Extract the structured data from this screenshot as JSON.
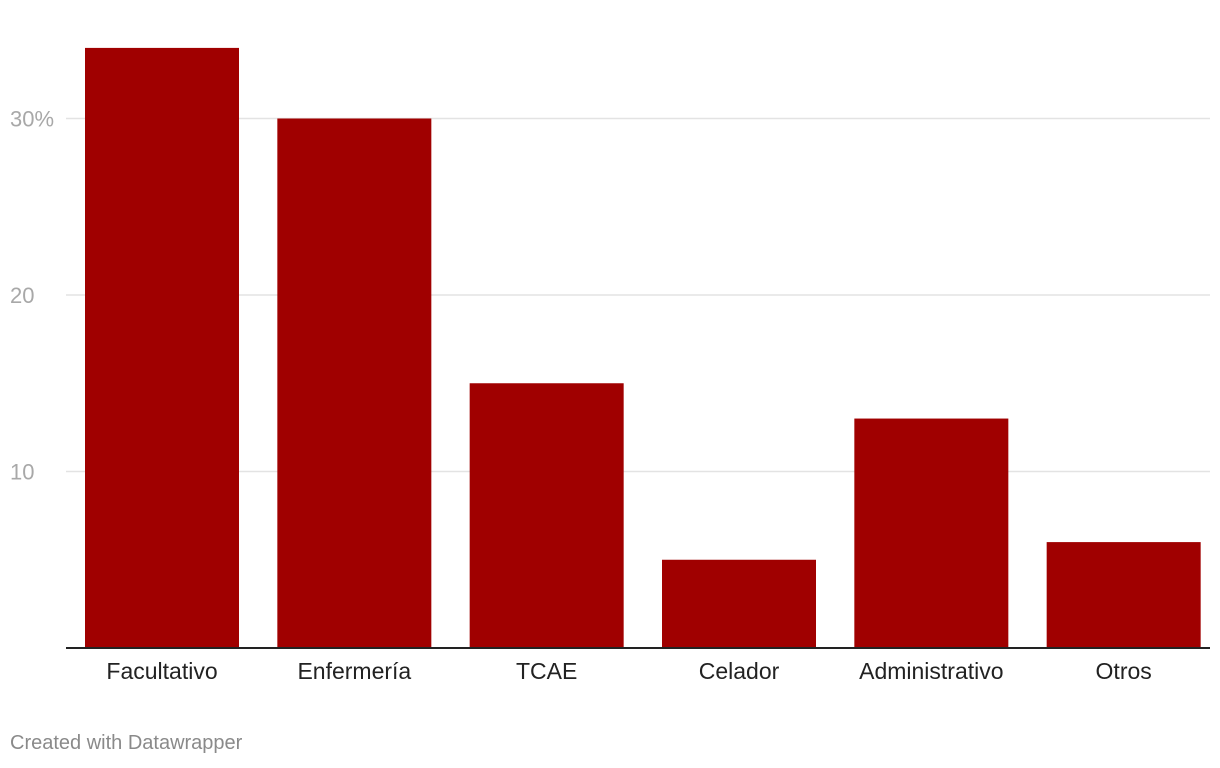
{
  "chart_data": {
    "type": "bar",
    "categories": [
      "Facultativo",
      "Enfermería",
      "TCAE",
      "Celador",
      "Administrativo",
      "Otros"
    ],
    "values": [
      34,
      30,
      15,
      5,
      13,
      6
    ],
    "y_ticks": [
      {
        "value": 10,
        "label": "10"
      },
      {
        "value": 20,
        "label": "20"
      },
      {
        "value": 30,
        "label": "30%"
      }
    ],
    "ylim": [
      0,
      36
    ],
    "grid": true,
    "bar_color": "#a00000",
    "gridline_color": "#e3e3e3",
    "axis_color": "#222222"
  },
  "footer": {
    "credit": "Created with Datawrapper"
  }
}
